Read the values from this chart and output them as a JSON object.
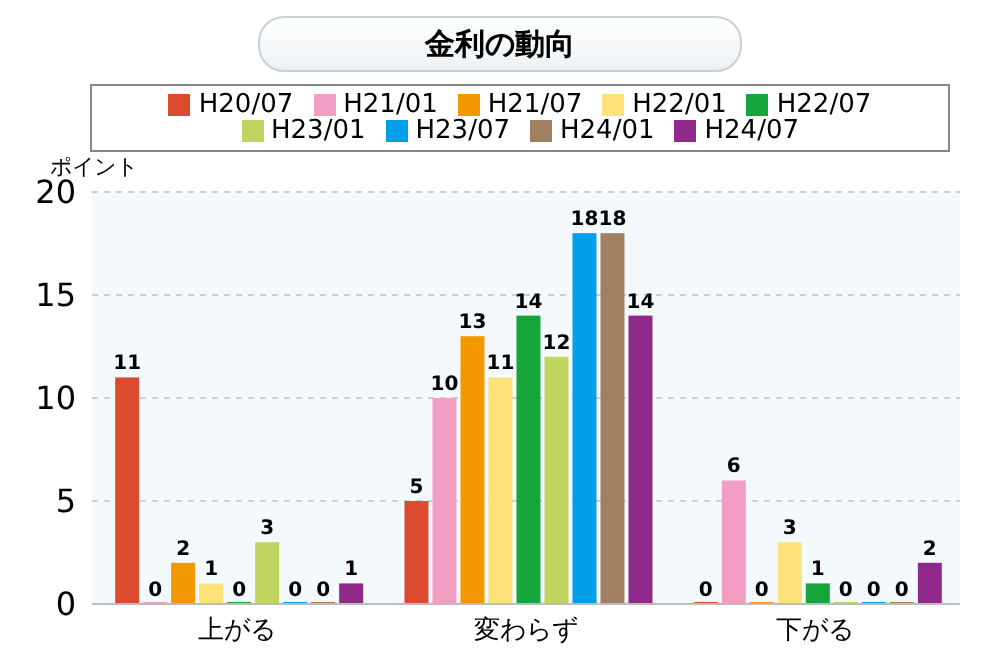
{
  "chart_data": {
    "type": "bar",
    "title": "金利の動向",
    "ylabel": "ポイント",
    "categories": [
      "上がる",
      "変わらず",
      "下がる"
    ],
    "series": [
      {
        "name": "H20/07",
        "color": "#dd4b2e",
        "values": [
          11,
          5,
          0
        ]
      },
      {
        "name": "H21/01",
        "color": "#f19ec2",
        "values": [
          0,
          10,
          6
        ]
      },
      {
        "name": "H21/07",
        "color": "#f39800",
        "values": [
          2,
          13,
          0
        ]
      },
      {
        "name": "H22/01",
        "color": "#ffe17a",
        "values": [
          1,
          11,
          3
        ]
      },
      {
        "name": "H22/07",
        "color": "#16a53a",
        "values": [
          0,
          14,
          1
        ]
      },
      {
        "name": "H23/01",
        "color": "#bed45f",
        "values": [
          3,
          12,
          0
        ]
      },
      {
        "name": "H23/07",
        "color": "#00a0e9",
        "values": [
          0,
          18,
          0
        ]
      },
      {
        "name": "H24/01",
        "color": "#a08060",
        "values": [
          0,
          18,
          0
        ]
      },
      {
        "name": "H24/07",
        "color": "#8f2a8a",
        "values": [
          1,
          14,
          2
        ]
      }
    ],
    "ylim": [
      0,
      20
    ],
    "yticks": [
      0,
      5,
      10,
      15,
      20
    ],
    "grid": "y",
    "legend": "top",
    "data_labels": true
  }
}
